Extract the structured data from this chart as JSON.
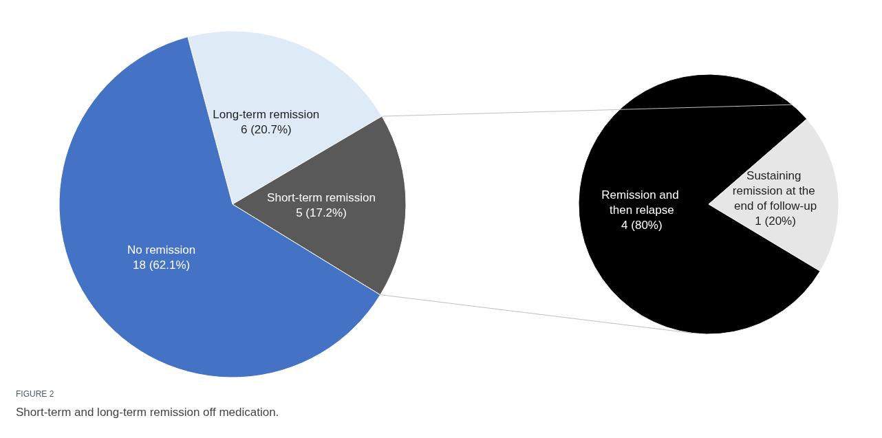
{
  "chart_data": [
    {
      "type": "pie",
      "title": "FIGURE 2",
      "subtitle": "Short-term and long-term remission off medication.",
      "categories": [
        "Long-term remission",
        "Short-term remission",
        "No remission"
      ],
      "values": [
        6,
        5,
        18
      ],
      "value_labels": [
        "6 (20.7%)",
        "5 (17.2%)",
        "18 (62.1%)"
      ],
      "colors": [
        "#deebf7",
        "#595959",
        "#4472c4"
      ],
      "legend": false
    },
    {
      "type": "pie",
      "categories": [
        "Sustaining remission at the end of follow-up",
        "Remission and then relapse"
      ],
      "values": [
        1,
        4
      ],
      "value_labels": [
        "1 (20%)",
        "4 (80%)"
      ],
      "colors": [
        "#e7e6e6",
        "#000000"
      ],
      "legend": false
    }
  ]
}
